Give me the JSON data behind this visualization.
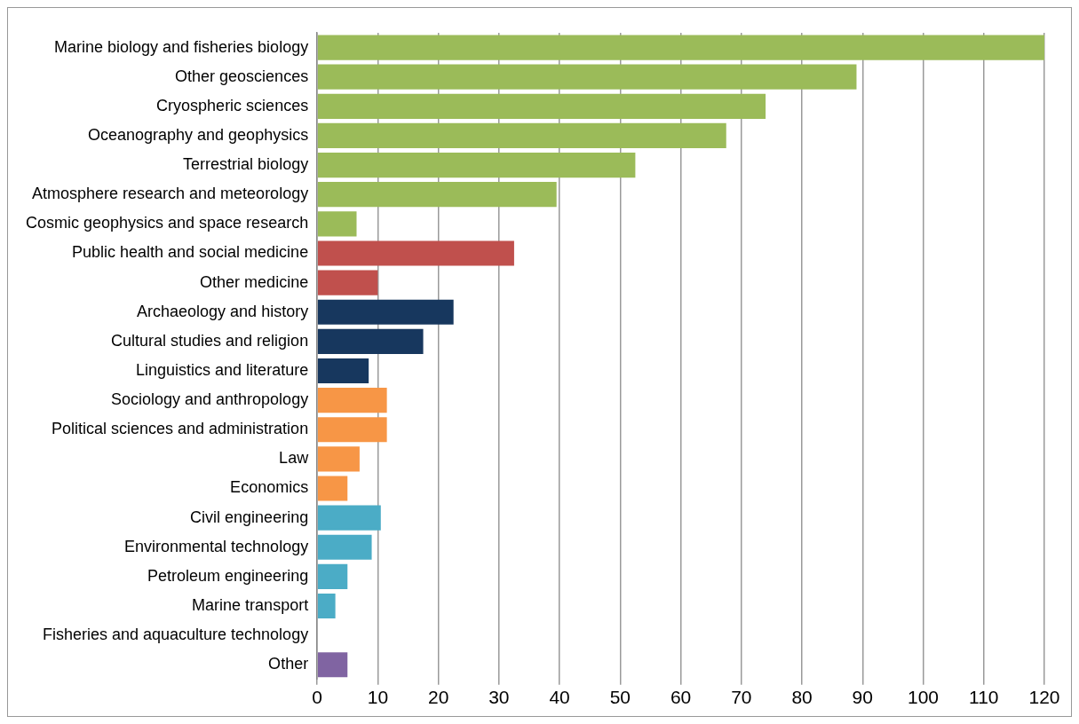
{
  "chart_data": {
    "type": "bar",
    "orientation": "horizontal",
    "categories": [
      "Marine biology and fisheries biology",
      "Other geosciences",
      "Cryospheric sciences",
      "Oceanography and geophysics",
      "Terrestrial biology",
      "Atmosphere research and meteorology",
      "Cosmic geophysics and space research",
      "Public health and social medicine",
      "Other medicine",
      "Archaeology and history",
      "Cultural studies and religion",
      "Linguistics and literature",
      "Sociology and anthropology",
      "Political sciences and administration",
      "Law",
      "Economics",
      "Civil engineering",
      "Environmental technology",
      "Petroleum engineering",
      "Marine transport",
      "Fisheries and aquaculture technology",
      "Other"
    ],
    "values": [
      120,
      89,
      74,
      67.5,
      52.5,
      39.5,
      6.5,
      32.5,
      10,
      22.5,
      17.5,
      8.5,
      11.5,
      11.5,
      7,
      5,
      10.5,
      9,
      5,
      3,
      0,
      5
    ],
    "colors": [
      "#9bbb59",
      "#9bbb59",
      "#9bbb59",
      "#9bbb59",
      "#9bbb59",
      "#9bbb59",
      "#9bbb59",
      "#c0504d",
      "#c0504d",
      "#17375e",
      "#17375e",
      "#17375e",
      "#f79646",
      "#f79646",
      "#f79646",
      "#f79646",
      "#4bacc6",
      "#4bacc6",
      "#4bacc6",
      "#4bacc6",
      "#4bacc6",
      "#8064a2"
    ],
    "xlim": [
      0,
      120
    ],
    "xticks": [
      0,
      10,
      20,
      30,
      40,
      50,
      60,
      70,
      80,
      90,
      100,
      110,
      120
    ],
    "grid": "x",
    "legend": false
  }
}
